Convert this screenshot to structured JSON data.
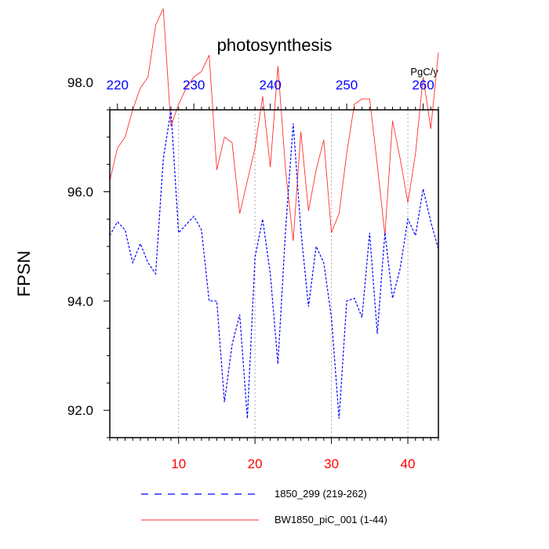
{
  "chart_data": {
    "type": "line",
    "title": "photosynthesis",
    "ylabel": "FPSN",
    "units_label": "PgC/y",
    "xlim": [
      1,
      44
    ],
    "ylim": [
      91.5,
      97.5
    ],
    "x_bottom_ticks": [
      10,
      20,
      30,
      40
    ],
    "x_top_ticks": [
      220,
      230,
      240,
      250,
      260
    ],
    "top_axis_offset": 218,
    "y_ticks": [
      92.0,
      94.0,
      96.0,
      98.0
    ],
    "y_tick_labels": [
      "92.0",
      "94.0",
      "96.0",
      "98.0"
    ],
    "colors": {
      "bottom_ticks": "#ff0000",
      "top_ticks": "#0000ff"
    },
    "x": [
      1,
      2,
      3,
      4,
      5,
      6,
      7,
      8,
      9,
      10,
      11,
      12,
      13,
      14,
      15,
      16,
      17,
      18,
      19,
      20,
      21,
      22,
      23,
      24,
      25,
      26,
      27,
      28,
      29,
      30,
      31,
      32,
      33,
      34,
      35,
      36,
      37,
      38,
      39,
      40,
      41,
      42,
      43,
      44
    ],
    "series": [
      {
        "name": "BW1850_piC_001 (1-44)",
        "color": "#ff3030",
        "dash": "solid",
        "values": [
          96.2,
          96.8,
          97.0,
          97.5,
          97.9,
          98.1,
          99.05,
          99.35,
          97.2,
          97.6,
          97.9,
          98.1,
          98.2,
          98.5,
          96.4,
          97.0,
          96.9,
          95.6,
          96.2,
          96.8,
          97.75,
          96.45,
          98.3,
          96.4,
          95.1,
          97.1,
          95.65,
          96.4,
          96.95,
          95.25,
          95.6,
          96.7,
          97.6,
          97.7,
          97.7,
          96.5,
          95.2,
          97.3,
          96.6,
          95.8,
          96.7,
          98.1,
          97.15,
          98.55
        ]
      },
      {
        "name": "1850_299 (219-262)",
        "color": "#0000ff",
        "dash": "dashed",
        "values": [
          95.2,
          95.45,
          95.3,
          94.7,
          95.05,
          94.7,
          94.5,
          96.6,
          97.5,
          95.25,
          95.4,
          95.55,
          95.3,
          94.0,
          94.0,
          92.15,
          93.2,
          93.75,
          91.85,
          94.8,
          95.5,
          94.5,
          92.85,
          95.3,
          97.25,
          95.3,
          93.9,
          95.0,
          94.7,
          93.7,
          91.85,
          94.0,
          94.05,
          93.7,
          95.25,
          93.4,
          95.25,
          94.05,
          94.6,
          95.5,
          95.2,
          96.05,
          95.45,
          94.95
        ]
      }
    ]
  },
  "legend": {
    "entries": [
      "1850_299 (219-262)",
      "BW1850_piC_001 (1-44)"
    ]
  }
}
